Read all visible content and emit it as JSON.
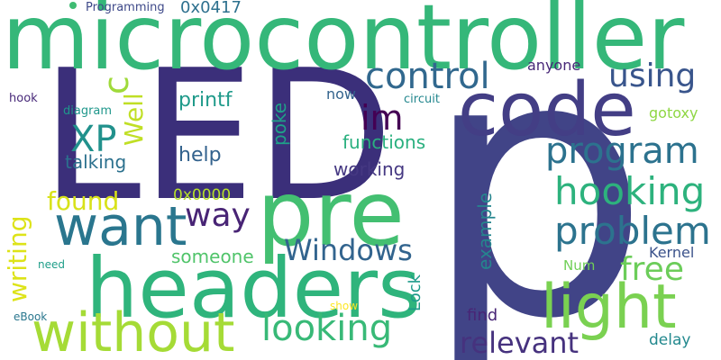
{
  "words": [
    {
      "text": "p",
      "color": "#414487"
    },
    {
      "text": "LED",
      "color": "#3b2f7a"
    },
    {
      "text": "microcontroller",
      "color": "#35b779"
    },
    {
      "text": "code",
      "color": "#433e85"
    },
    {
      "text": "headers",
      "color": "#2fb47c"
    },
    {
      "text": "pre",
      "color": "#43bf71"
    },
    {
      "text": "want",
      "color": "#2a768e"
    },
    {
      "text": "without",
      "color": "#a5db36"
    },
    {
      "text": "light",
      "color": "#7ad151"
    },
    {
      "text": "control",
      "color": "#31688e"
    },
    {
      "text": "program",
      "color": "#2c728e"
    },
    {
      "text": "hooking",
      "color": "#2db27d"
    },
    {
      "text": "problem",
      "color": "#2c738e"
    },
    {
      "text": "looking",
      "color": "#38b977"
    },
    {
      "text": "Windows",
      "color": "#32648e"
    },
    {
      "text": "relevant",
      "color": "#46327e"
    },
    {
      "text": "im",
      "color": "#440154"
    },
    {
      "text": "way",
      "color": "#482475"
    },
    {
      "text": "using",
      "color": "#39558c"
    },
    {
      "text": "XP",
      "color": "#21918c"
    },
    {
      "text": "c",
      "color": "#9fda3a"
    },
    {
      "text": "writing",
      "color": "#dde318"
    },
    {
      "text": "free",
      "color": "#6ccd5a"
    },
    {
      "text": "found",
      "color": "#d8e219"
    },
    {
      "text": "Well",
      "color": "#c0df25"
    },
    {
      "text": "printf",
      "color": "#1f9a8a"
    },
    {
      "text": "functions",
      "color": "#2ab07f"
    },
    {
      "text": "help",
      "color": "#33628d"
    },
    {
      "text": "talking",
      "color": "#2c718e"
    },
    {
      "text": "working",
      "color": "#453882"
    },
    {
      "text": "poke",
      "color": "#1fa088"
    },
    {
      "text": "example",
      "color": "#25858e"
    },
    {
      "text": "someone",
      "color": "#50c46a"
    },
    {
      "text": "Lock",
      "color": "#1e9b8a"
    },
    {
      "text": "find",
      "color": "#482576"
    },
    {
      "text": "delay",
      "color": "#23898e"
    },
    {
      "text": "gotoxy",
      "color": "#8fd744"
    },
    {
      "text": "Kernel",
      "color": "#3b528b"
    },
    {
      "text": "Num",
      "color": "#70cf57"
    },
    {
      "text": "0x0417",
      "color": "#2d708e"
    },
    {
      "text": "0x0000",
      "color": "#b5de2b"
    },
    {
      "text": "now",
      "color": "#33638d"
    },
    {
      "text": "anyone",
      "color": "#482878"
    },
    {
      "text": "hook",
      "color": "#482979"
    },
    {
      "text": "diagram",
      "color": "#1f978b"
    },
    {
      "text": "circuit",
      "color": "#24878e"
    },
    {
      "text": "Programming",
      "color": "#3e4989"
    },
    {
      "text": "need",
      "color": "#1f9e89"
    },
    {
      "text": "eBook",
      "color": "#2a778e"
    },
    {
      "text": "show",
      "color": "#fde725"
    }
  ]
}
